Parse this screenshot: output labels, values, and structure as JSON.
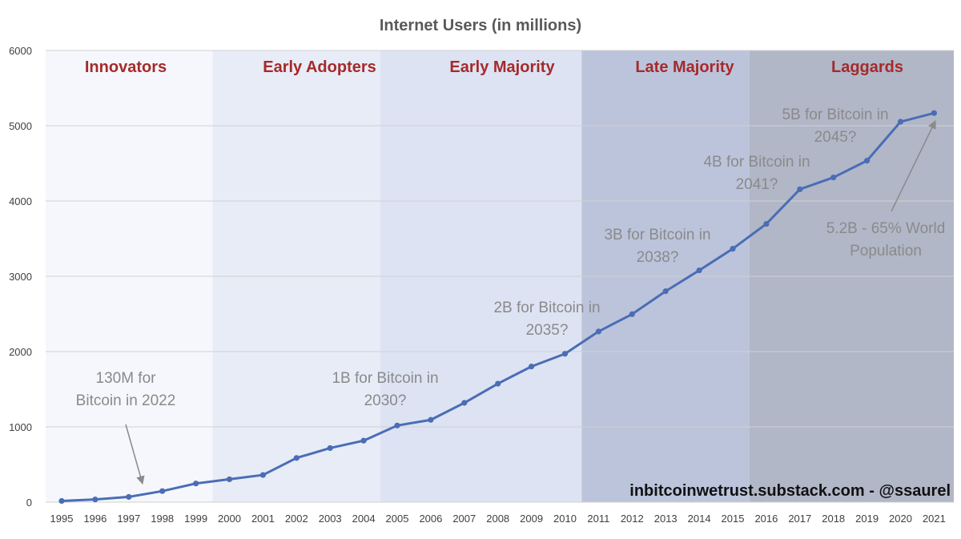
{
  "chart_data": {
    "type": "line",
    "title": "Internet Users (in millions)",
    "xlabel": "",
    "ylabel": "",
    "ylim": [
      0,
      6000
    ],
    "yticks": [
      0,
      1000,
      2000,
      3000,
      4000,
      5000,
      6000
    ],
    "grid": true,
    "categories": [
      "1995",
      "1996",
      "1997",
      "1998",
      "1999",
      "2000",
      "2001",
      "2002",
      "2003",
      "2004",
      "2005",
      "2006",
      "2007",
      "2008",
      "2009",
      "2010",
      "2011",
      "2012",
      "2013",
      "2014",
      "2015",
      "2016",
      "2017",
      "2018",
      "2019",
      "2020",
      "2021"
    ],
    "series": [
      {
        "values": [
          16,
          36,
          70,
          147,
          248,
          304,
          361,
          587,
          719,
          817,
          1018,
          1093,
          1319,
          1574,
          1802,
          1971,
          2267,
          2497,
          2802,
          3079,
          3366,
          3696,
          4156,
          4313,
          4536,
          5053,
          5168
        ],
        "color": "#4a6db5"
      }
    ],
    "phases": [
      {
        "label": "Innovators",
        "from": "1995",
        "to": "2000",
        "color": "#f5f7fc"
      },
      {
        "label": "Early Adopters",
        "from": "2000",
        "to": "2005",
        "color": "#e8ecf7"
      },
      {
        "label": "Early Majority",
        "from": "2005",
        "to": "2011",
        "color": "#dde3f3"
      },
      {
        "label": "Late Majority",
        "from": "2011",
        "to": "2016",
        "color": "#bcc4db"
      },
      {
        "label": "Laggards",
        "from": "2016",
        "to": "2021",
        "color": "#b1b7c7"
      }
    ],
    "annotations": [
      {
        "lines": [
          "130M for",
          "Bitcoin in 2022"
        ],
        "arrow_to": "1997"
      },
      {
        "lines": [
          "1B for Bitcoin in",
          "2030?"
        ]
      },
      {
        "lines": [
          "2B for Bitcoin in",
          "2035?"
        ]
      },
      {
        "lines": [
          "3B for Bitcoin in",
          "2038?"
        ]
      },
      {
        "lines": [
          "4B for Bitcoin in",
          "2041?"
        ]
      },
      {
        "lines": [
          "5B for Bitcoin in",
          "2045?"
        ]
      },
      {
        "lines": [
          "5.2B - 65% World",
          "Population"
        ],
        "arrow_to": "2021"
      }
    ],
    "watermark": "inbitcoinwetrust.substack.com - @ssaurel"
  }
}
